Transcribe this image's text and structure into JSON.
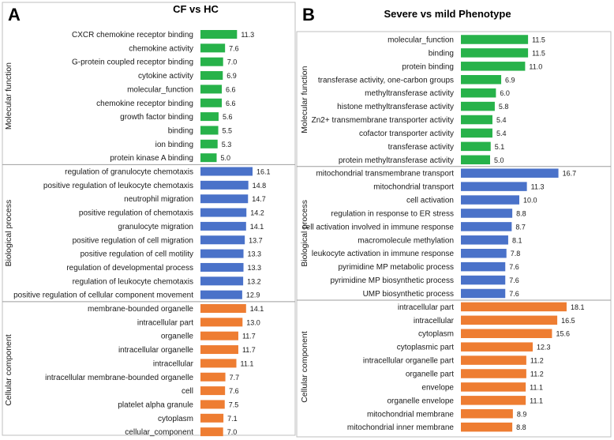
{
  "colors": {
    "molecular_function": "#27b24a",
    "biological_process": "#4a72c9",
    "cellular_component": "#ee7d32"
  },
  "chart_data": [
    {
      "type": "bar",
      "orientation": "horizontal",
      "panel": "A",
      "title": "CF vs HC",
      "groups": [
        {
          "name": "Molecular function",
          "key": "molecular_function",
          "categories": [
            "CXCR chemokine receptor binding",
            "chemokine activity",
            "G-protein coupled receptor binding",
            "cytokine activity",
            "molecular_function",
            "chemokine receptor binding",
            "growth factor binding",
            "binding",
            "ion binding",
            "protein kinase A binding"
          ],
          "values": [
            11.3,
            7.6,
            7.0,
            6.9,
            6.6,
            6.6,
            5.6,
            5.5,
            5.3,
            5.0
          ],
          "value_labels": [
            "11.3",
            "7.6",
            "7.0",
            "6.9",
            "6.6",
            "6.6",
            "5.6",
            "5.5",
            "5.3",
            "5.0"
          ]
        },
        {
          "name": "Biological process",
          "key": "biological_process",
          "categories": [
            "regulation of granulocyte chemotaxis",
            "positive regulation of leukocyte chemotaxis",
            "neutrophil migration",
            "positive regulation of chemotaxis",
            "granulocyte migration",
            "positive regulation of cell migration",
            "positive regulation of cell motility",
            "regulation of developmental process",
            "regulation of leukocyte chemotaxis",
            "positive regulation of cellular component movement"
          ],
          "values": [
            16.1,
            14.8,
            14.7,
            14.2,
            14.1,
            13.7,
            13.3,
            13.3,
            13.2,
            12.9
          ],
          "value_labels": [
            "16.1",
            "14.8",
            "14.7",
            "14.2",
            "14.1",
            "13.7",
            "13.3",
            "13.3",
            "13.2",
            "12.9"
          ]
        },
        {
          "name": "Cellular component",
          "key": "cellular_component",
          "categories": [
            "membrane-bounded organelle",
            "intracellular part",
            "organelle",
            "intracellular organelle",
            "intracellular",
            "intracellular membrane-bounded organelle",
            "cell",
            "platelet alpha granule",
            "cytoplasm",
            "cellular_component"
          ],
          "values": [
            14.1,
            13.0,
            11.7,
            11.7,
            11.1,
            7.7,
            7.6,
            7.5,
            7.1,
            7.0
          ],
          "value_labels": [
            "14.1",
            "13.0",
            "11.7",
            "11.7",
            "11.1",
            "7.7",
            "7.6",
            "7.5",
            "7.1",
            "7.0"
          ]
        }
      ],
      "xlim": [
        0,
        20
      ],
      "axes_visible": false
    },
    {
      "type": "bar",
      "orientation": "horizontal",
      "panel": "B",
      "title": "Severe vs mild Phenotype",
      "groups": [
        {
          "name": "Molecular function",
          "key": "molecular_function",
          "categories": [
            "molecular_function",
            "binding",
            "protein binding",
            "transferase activity, one-carbon groups",
            "methyltransferase activity",
            "histone methyltransferase activity",
            "Zn2+ transmembrane transporter activity",
            "cofactor transporter activity",
            "transferase activity",
            "protein methyltransferase activity"
          ],
          "values": [
            11.5,
            11.5,
            11.0,
            6.9,
            6.0,
            5.8,
            5.4,
            5.4,
            5.1,
            5.0
          ],
          "value_labels": [
            "11.5",
            "11.5",
            "11.0",
            "6.9",
            "6.0",
            "5.8",
            "5.4",
            "5.4",
            "5.1",
            "5.0"
          ]
        },
        {
          "name": "Biological process",
          "key": "biological_process",
          "categories": [
            "mitochondrial transmembrane transport",
            "mitochondrial transport",
            "cell activation",
            "regulation in response to ER stress",
            "cell activation involved in immune response",
            "macromolecule methylation",
            "leukocyte activation in immune response",
            "pyrimidine MP metabolic process",
            "pyrimidine MP biosynthetic process",
            "UMP biosynthetic process"
          ],
          "values": [
            16.7,
            11.3,
            10.0,
            8.8,
            8.7,
            8.1,
            7.8,
            7.6,
            7.6,
            7.6
          ],
          "value_labels": [
            "16.7",
            "11.3",
            "10.0",
            "8.8",
            "8.7",
            "8.1",
            "7.8",
            "7.6",
            "7.6",
            "7.6"
          ]
        },
        {
          "name": "Cellular component",
          "key": "cellular_component",
          "categories": [
            "intracellular part",
            "intracellular",
            "cytoplasm",
            "cytoplasmic part",
            "intracellular organelle part",
            "organelle part",
            "envelope",
            "organelle envelope",
            "mitochondrial membrane",
            "mitochondrial inner membrane"
          ],
          "values": [
            18.1,
            16.5,
            15.6,
            12.3,
            11.2,
            11.2,
            11.1,
            11.1,
            8.9,
            8.8
          ],
          "value_labels": [
            "18.1",
            "16.5",
            "15.6",
            "12.3",
            "11.2",
            "11.2",
            "11.1",
            "11.1",
            "8.9",
            "8.8"
          ]
        }
      ],
      "xlim": [
        0,
        20
      ],
      "axes_visible": false
    }
  ]
}
